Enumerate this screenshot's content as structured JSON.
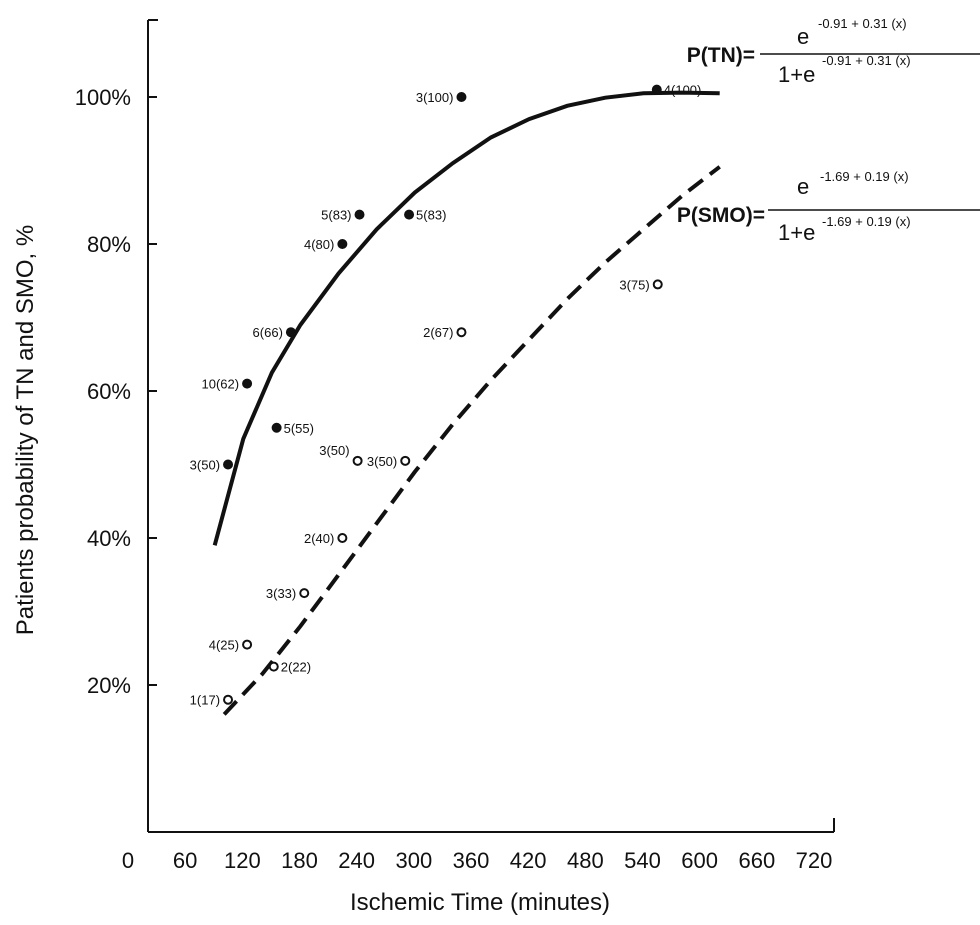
{
  "chart_data": {
    "type": "scatter",
    "title": "",
    "xlabel": "Ischemic Time (minutes)",
    "ylabel": "Patients probability of TN and SMO, %",
    "xlim": [
      0,
      720
    ],
    "ylim": [
      0,
      110
    ],
    "x_ticks": [
      0,
      60,
      120,
      180,
      240,
      300,
      360,
      420,
      480,
      540,
      600,
      660,
      720
    ],
    "y_ticks": [
      {
        "value": 20,
        "label": "20%"
      },
      {
        "value": 40,
        "label": "40%"
      },
      {
        "value": 60,
        "label": "60%"
      },
      {
        "value": 80,
        "label": "80%"
      },
      {
        "value": 100,
        "label": "100%"
      }
    ],
    "grid": false,
    "series": [
      {
        "name": "TN",
        "marker": "filled-circle",
        "color": "#111111",
        "points": [
          {
            "x": 84,
            "y": 50,
            "label": "3(50)"
          },
          {
            "x": 104,
            "y": 61,
            "label": "10(62)"
          },
          {
            "x": 135,
            "y": 55,
            "label": "5(55)"
          },
          {
            "x": 150,
            "y": 68,
            "label": "6(66)"
          },
          {
            "x": 204,
            "y": 80,
            "label": "4(80)"
          },
          {
            "x": 222,
            "y": 84,
            "label": "5(83)"
          },
          {
            "x": 274,
            "y": 84,
            "label": "5(83)"
          },
          {
            "x": 329,
            "y": 100,
            "label": "3(100)"
          },
          {
            "x": 534,
            "y": 101,
            "label": "4(100)"
          }
        ]
      },
      {
        "name": "SMO",
        "marker": "open-circle",
        "color": "#111111",
        "points": [
          {
            "x": 84,
            "y": 18,
            "label": "1(17)"
          },
          {
            "x": 104,
            "y": 25.5,
            "label": "4(25)"
          },
          {
            "x": 132,
            "y": 22.5,
            "label": "2(22)"
          },
          {
            "x": 164,
            "y": 32.5,
            "label": "3(33)"
          },
          {
            "x": 204,
            "y": 40,
            "label": "2(40)"
          },
          {
            "x": 220,
            "y": 50.5,
            "label": "3(50)"
          },
          {
            "x": 270,
            "y": 50.5,
            "label": "3(50)"
          },
          {
            "x": 329,
            "y": 68,
            "label": "2(67)"
          },
          {
            "x": 535,
            "y": 74.5,
            "label": "3(75)"
          }
        ]
      }
    ],
    "fit_curves": [
      {
        "name": "P(TN)",
        "style": "solid",
        "points": [
          [
            70,
            39
          ],
          [
            100,
            53.5
          ],
          [
            130,
            62.5
          ],
          [
            160,
            69
          ],
          [
            200,
            76
          ],
          [
            240,
            82
          ],
          [
            280,
            87
          ],
          [
            320,
            91
          ],
          [
            360,
            94.5
          ],
          [
            400,
            97
          ],
          [
            440,
            98.8
          ],
          [
            480,
            99.9
          ],
          [
            520,
            100.5
          ],
          [
            560,
            100.6
          ],
          [
            600,
            100.5
          ]
        ]
      },
      {
        "name": "P(SMO)",
        "style": "dashed",
        "points": [
          [
            80,
            16
          ],
          [
            120,
            21.5
          ],
          [
            160,
            28
          ],
          [
            200,
            35
          ],
          [
            240,
            42
          ],
          [
            280,
            49
          ],
          [
            320,
            55.5
          ],
          [
            360,
            61.5
          ],
          [
            400,
            67
          ],
          [
            440,
            72.5
          ],
          [
            480,
            77.5
          ],
          [
            520,
            82
          ],
          [
            560,
            86.5
          ],
          [
            600,
            90.5
          ]
        ]
      }
    ],
    "equations": [
      {
        "lhs": "P(TN)=",
        "num_base": "e",
        "num_exp": "-0.91 + 0.31 (x)",
        "den_base": "1+e",
        "den_exp": "-0.91 + 0.31 (x)"
      },
      {
        "lhs": "P(SMO)=",
        "num_base": "e",
        "num_exp": "-1.69 + 0.19 (x)",
        "den_base": "1+e",
        "den_exp": "-1.69 + 0.19 (x)"
      }
    ]
  }
}
